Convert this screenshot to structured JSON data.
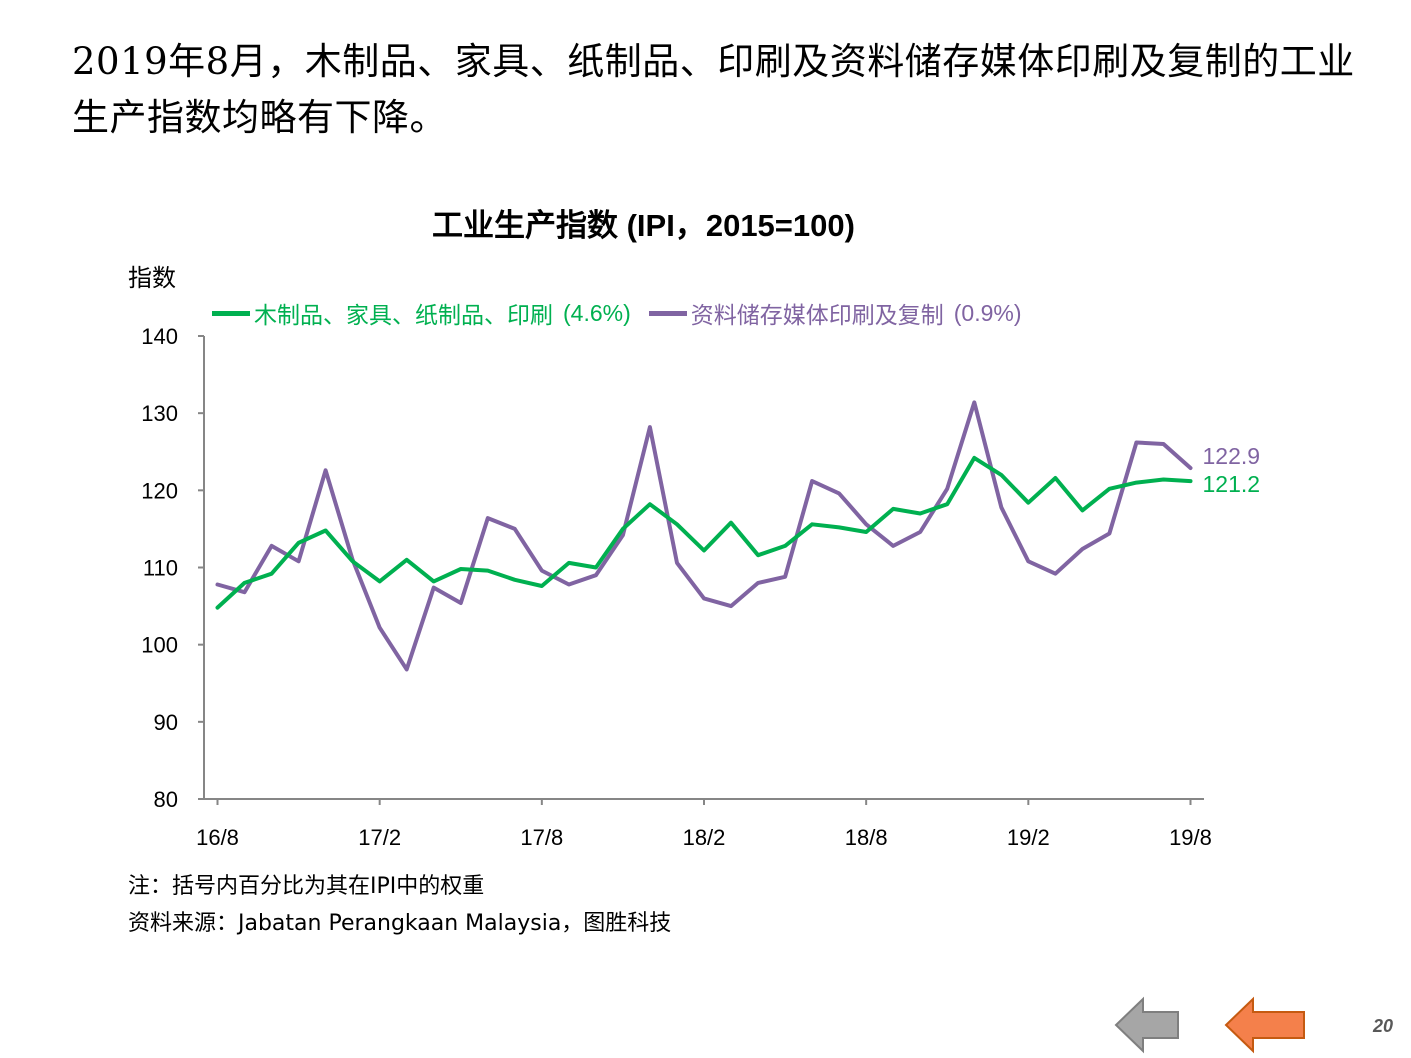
{
  "slide": {
    "heading": "2019年8月，木制品、家具、纸制品、印刷及资料储存媒体印刷及复制的工业生产指数均略有下降。",
    "page_number": "20",
    "note": "注：括号内百分比为其在IPI中的权重",
    "source": "资料来源：Jabatan Perangkaan Malaysia，图胜科技",
    "nav": {
      "prev_icon": "left-arrow-gray",
      "next_icon": "left-arrow-orange",
      "prev_color": "#a6a6a6",
      "next_color": "#f4804b"
    }
  },
  "chart_data": {
    "type": "line",
    "title": "工业生产指数 (IPI，2015=100)",
    "ylabel": "指数",
    "ylim": [
      80,
      140
    ],
    "yticks": [
      80,
      90,
      100,
      110,
      120,
      130,
      140
    ],
    "x_tick_labels": [
      "16/8",
      "17/2",
      "17/8",
      "18/2",
      "18/8",
      "19/2",
      "19/8"
    ],
    "x_tick_positions": [
      0,
      6,
      12,
      18,
      24,
      30,
      36
    ],
    "x": [
      "16/8",
      "16/9",
      "16/10",
      "16/11",
      "16/12",
      "17/1",
      "17/2",
      "17/3",
      "17/4",
      "17/5",
      "17/6",
      "17/7",
      "17/8",
      "17/9",
      "17/10",
      "17/11",
      "17/12",
      "18/1",
      "18/2",
      "18/3",
      "18/4",
      "18/5",
      "18/6",
      "18/7",
      "18/8",
      "18/9",
      "18/10",
      "18/11",
      "18/12",
      "19/1",
      "19/2",
      "19/3",
      "19/4",
      "19/5",
      "19/6",
      "19/7",
      "19/8"
    ],
    "grid": false,
    "legend_position": "top",
    "series": [
      {
        "name": "木制品、家具、纸制品、印刷",
        "weight": "(4.6%)",
        "color": "#00b050",
        "end_label": "121.2",
        "values": [
          104.8,
          108.0,
          109.2,
          113.2,
          114.8,
          110.8,
          108.2,
          111.0,
          108.2,
          109.8,
          109.6,
          108.4,
          107.6,
          110.6,
          110.0,
          115.0,
          118.2,
          115.6,
          112.2,
          115.8,
          111.6,
          112.8,
          115.6,
          115.2,
          114.6,
          117.6,
          117.0,
          118.2,
          124.2,
          122.0,
          118.4,
          121.6,
          117.4,
          120.2,
          121.0,
          121.4,
          121.2
        ]
      },
      {
        "name": "资料储存媒体印刷及复制",
        "weight": "(0.9%)",
        "color": "#8064a2",
        "end_label": "122.9",
        "values": [
          107.8,
          106.8,
          112.8,
          110.8,
          122.6,
          111.0,
          102.2,
          96.8,
          107.4,
          105.4,
          116.4,
          115.0,
          109.6,
          107.8,
          109.0,
          114.2,
          128.2,
          110.6,
          106.0,
          105.0,
          108.0,
          108.8,
          121.2,
          119.6,
          115.6,
          112.8,
          114.6,
          120.2,
          131.4,
          117.8,
          110.8,
          109.2,
          112.4,
          114.4,
          126.2,
          126.0,
          122.9
        ]
      }
    ]
  }
}
